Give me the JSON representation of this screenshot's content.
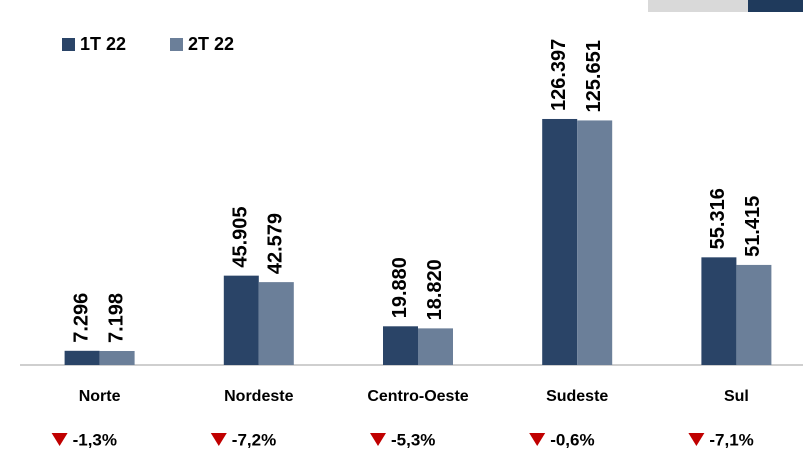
{
  "chart_data": {
    "type": "bar",
    "categories": [
      "Norte",
      "Nordeste",
      "Centro-Oeste",
      "Sudeste",
      "Sul"
    ],
    "series": [
      {
        "name": "1T 22",
        "color": "#2a4467",
        "values": [
          7296,
          45905,
          19880,
          126397,
          55316
        ],
        "value_labels": [
          "7.296",
          "45.905",
          "19.880",
          "126.397",
          "55.316"
        ]
      },
      {
        "name": "2T 22",
        "color": "#6b7f99",
        "values": [
          7198,
          42579,
          18820,
          125651,
          51415
        ],
        "value_labels": [
          "7.198",
          "42.579",
          "18.820",
          "125.651",
          "51.415"
        ]
      }
    ],
    "changes": {
      "color": "#c00000",
      "values": [
        -1.3,
        -7.2,
        -5.3,
        -0.6,
        -7.1
      ],
      "value_labels": [
        "-1,3%",
        "-7,2%",
        "-5,3%",
        "-0,6%",
        "-7,1%"
      ]
    },
    "ylim": [
      0,
      140000
    ],
    "legend": "top-left"
  }
}
